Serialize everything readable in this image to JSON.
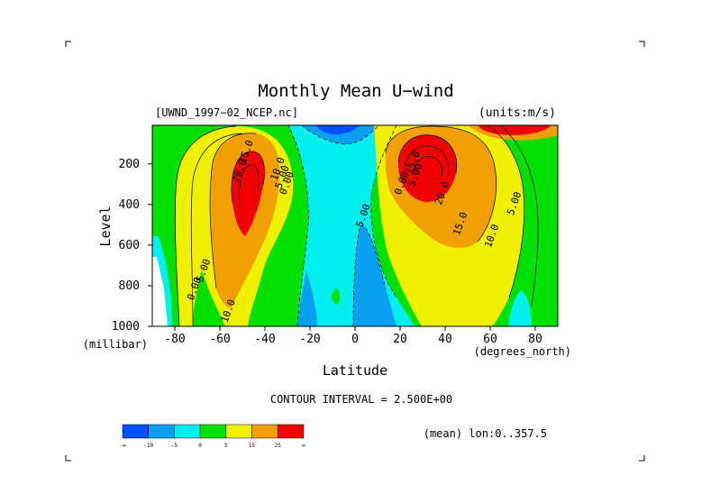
{
  "chart_data": {
    "type": "heatmap",
    "title": "Monthly Mean U−wind",
    "subtitle_left": "[UWND_1997−02_NCEP.nc]",
    "subtitle_right": "(units:m/s)",
    "xlabel": "Latitude",
    "ylabel": "Level",
    "x_unit": "(degrees_north)",
    "y_unit": "(millibar)",
    "xlim": [
      -90,
      90
    ],
    "ylim": [
      1000,
      10
    ],
    "x_ticks": [
      -80,
      -60,
      -40,
      -20,
      0,
      20,
      40,
      60,
      80
    ],
    "y_ticks": [
      200,
      400,
      600,
      800,
      1000
    ],
    "contour_interval_text": "CONTOUR INTERVAL = 2.500E+00",
    "footnote": "(mean) lon:0..357.5",
    "colorbar": {
      "colors": [
        "#0050ff",
        "#0aa0f0",
        "#00f0f0",
        "#00e000",
        "#f0f000",
        "#f0a000",
        "#f00000"
      ],
      "labels": [
        "-∞",
        "-10",
        "-5",
        "0",
        "5",
        "15",
        "25",
        "∞"
      ]
    },
    "contour_labels": [
      {
        "x": -50,
        "y": 240,
        "text": "20.0"
      },
      {
        "x": -47,
        "y": 145,
        "text": "15.0"
      },
      {
        "x": -33,
        "y": 230,
        "text": "10.0"
      },
      {
        "x": -31,
        "y": 270,
        "text": "5.00"
      },
      {
        "x": -29,
        "y": 300,
        "text": "0.00"
      },
      {
        "x": -70,
        "y": 820,
        "text": "0.00"
      },
      {
        "x": -66,
        "y": 730,
        "text": "5.00"
      },
      {
        "x": -55,
        "y": 930,
        "text": "10.0"
      },
      {
        "x": 5,
        "y": 460,
        "text": "5.00"
      },
      {
        "x": 22,
        "y": 300,
        "text": "0.00"
      },
      {
        "x": 28,
        "y": 260,
        "text": "5.00"
      },
      {
        "x": 27,
        "y": 200,
        "text": "15.0"
      },
      {
        "x": 40,
        "y": 350,
        "text": "20.0"
      },
      {
        "x": 48,
        "y": 500,
        "text": "15.0"
      },
      {
        "x": 62,
        "y": 560,
        "text": "10.0"
      },
      {
        "x": 72,
        "y": 400,
        "text": "5.00"
      }
    ]
  }
}
